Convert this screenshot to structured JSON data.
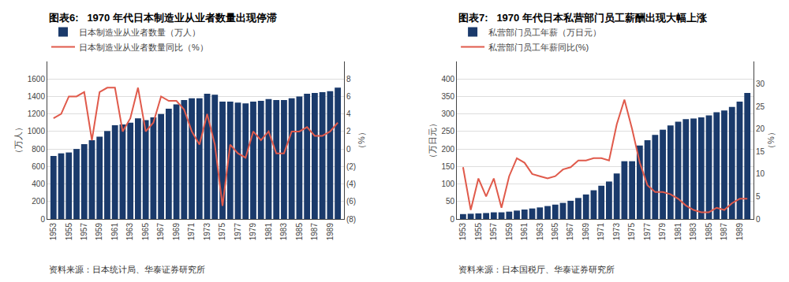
{
  "chart_data": [
    {
      "type": "bar",
      "title": "图表6:   1970 年代日本制造业从业者数量出现停滞",
      "ylabel": "（万人）",
      "y2label": "（%）",
      "annotations": [
        "资料来源：日本统计局、华泰证券研究所"
      ],
      "categories": [
        "1953",
        null,
        "1955",
        null,
        "1957",
        null,
        "1959",
        null,
        "1961",
        null,
        "1963",
        null,
        "1965",
        null,
        "1967",
        null,
        "1969",
        null,
        "1971",
        null,
        "1973",
        null,
        "1975",
        null,
        "1977",
        null,
        "1979",
        null,
        "1981",
        null,
        "1983",
        null,
        "1985",
        null,
        "1987",
        null,
        "1989",
        null
      ],
      "series": [
        {
          "name": "日本制造业从业者数量（万人）",
          "type": "bar",
          "color": "#1a3a6b",
          "values": [
            720,
            750,
            760,
            800,
            855,
            900,
            940,
            1005,
            1070,
            1080,
            1100,
            1150,
            1130,
            1160,
            1200,
            1260,
            1310,
            1360,
            1380,
            1380,
            1430,
            1420,
            1340,
            1340,
            1330,
            1320,
            1340,
            1350,
            1370,
            1360,
            1360,
            1380,
            1400,
            1430,
            1440,
            1450,
            1460,
            1500
          ]
        },
        {
          "name": "日本制造业从业者数量同比（%）",
          "type": "line",
          "axis": "y2",
          "color": "#e05a4b",
          "values": [
            3.5,
            4.0,
            6.0,
            6.0,
            6.5,
            1.0,
            6.5,
            7.0,
            7.0,
            2.0,
            3.5,
            7.0,
            2.0,
            3.0,
            6.0,
            5.5,
            5.5,
            4.5,
            2.0,
            0.5,
            4.0,
            0.5,
            -6.5,
            0.5,
            -0.5,
            -1.0,
            2.0,
            1.0,
            2.0,
            -0.5,
            -0.5,
            2.0,
            2.0,
            2.5,
            1.5,
            1.5,
            2.0,
            3.0
          ]
        }
      ],
      "ylim": [
        0,
        1800
      ],
      "yticks": [
        0,
        200,
        400,
        600,
        800,
        1000,
        1200,
        1400,
        1600
      ],
      "y2lim": [
        -8,
        10
      ],
      "y2ticks": [
        {
          "value": -8,
          "label": "(8)"
        },
        {
          "value": -6,
          "label": "(6)"
        },
        {
          "value": -4,
          "label": "(4)"
        },
        {
          "value": -2,
          "label": "(2)"
        },
        0,
        2,
        4,
        6,
        8
      ],
      "grid": true,
      "legend": "upper left"
    },
    {
      "type": "bar",
      "title": "图表7:   1970 年代日本私营部门员工薪酬出现大幅上涨",
      "ylabel": "（万日元）",
      "y2label": "（%）",
      "annotations": [
        "资料来源：日本国税厅、华泰证券研究所"
      ],
      "categories": [
        "1953",
        null,
        "1955",
        null,
        "1957",
        null,
        "1959",
        null,
        "1961",
        null,
        "1963",
        null,
        "1965",
        null,
        "1967",
        null,
        "1969",
        null,
        "1971",
        null,
        "1973",
        null,
        "1975",
        null,
        "1977",
        null,
        "1979",
        null,
        "1981",
        null,
        "1983",
        null,
        "1985",
        null,
        "1987",
        null,
        "1989",
        null
      ],
      "series": [
        {
          "name": "私营部门员工年薪（万日元）",
          "type": "bar",
          "color": "#1a3a6b",
          "values": [
            14,
            15,
            16,
            17,
            19,
            19,
            21,
            24,
            27,
            30,
            33,
            37,
            41,
            46,
            52,
            60,
            70,
            82,
            95,
            107,
            130,
            165,
            165,
            210,
            225,
            240,
            255,
            267,
            278,
            285,
            287,
            290,
            296,
            305,
            310,
            320,
            335,
            360
          ]
        },
        {
          "name": "私营部门员工年薪同比(%)",
          "type": "line",
          "axis": "y2",
          "color": "#e05a4b",
          "values": [
            11.5,
            2.0,
            9.0,
            5.0,
            9.0,
            2.5,
            9.5,
            13.5,
            12.5,
            10.0,
            9.5,
            9.0,
            9.5,
            11.0,
            11.5,
            13.0,
            13.0,
            13.5,
            13.5,
            13.0,
            21.0,
            26.5,
            20.0,
            12.5,
            7.5,
            6.0,
            6.0,
            5.5,
            4.5,
            3.0,
            2.0,
            1.5,
            1.5,
            2.5,
            2.0,
            3.5,
            4.5,
            4.5
          ]
        }
      ],
      "ylim": [
        0,
        450
      ],
      "yticks": [
        0,
        50,
        100,
        150,
        200,
        250,
        300,
        350,
        400
      ],
      "y2lim": [
        0,
        35
      ],
      "y2ticks": [
        0,
        5,
        10,
        15,
        20,
        25,
        30
      ],
      "grid": true,
      "legend": "upper left"
    }
  ]
}
